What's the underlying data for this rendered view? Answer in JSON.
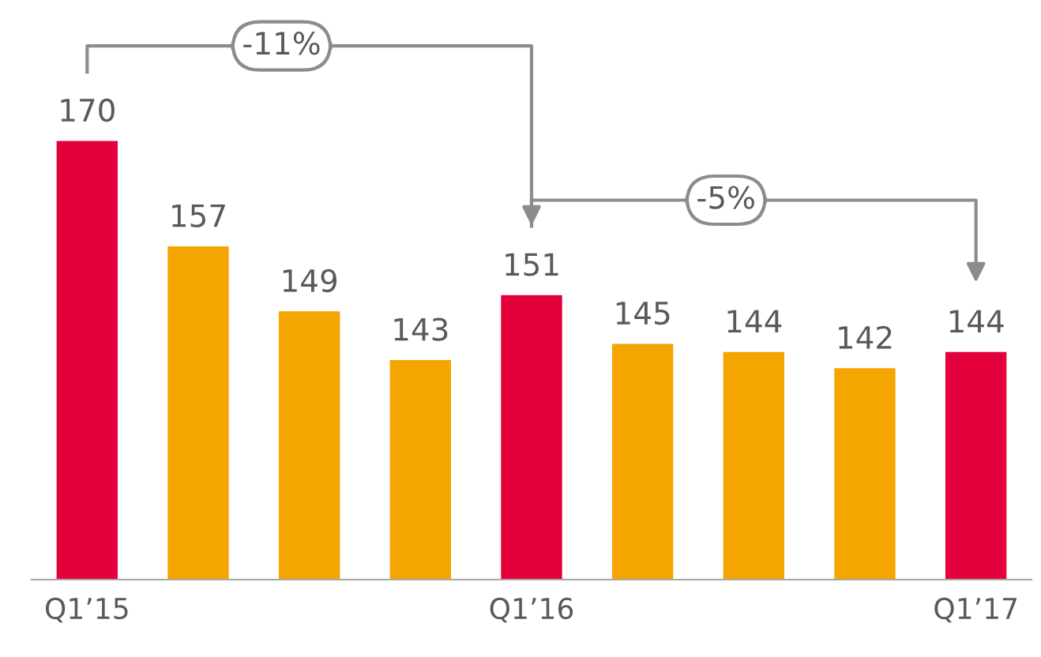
{
  "chart_data": {
    "type": "bar",
    "categories": [
      "Q1’15",
      null,
      null,
      null,
      "Q1’16",
      null,
      null,
      null,
      "Q1’17"
    ],
    "values": [
      170,
      157,
      149,
      143,
      151,
      145,
      144,
      142,
      144
    ],
    "colors": [
      "#e4003a",
      "#f5a500",
      "#f5a500",
      "#f5a500",
      "#e4003a",
      "#f5a500",
      "#f5a500",
      "#f5a500",
      "#e4003a"
    ],
    "tick_labels": "x",
    "data_labels": true,
    "annotations": [
      "-11%",
      "-5%"
    ]
  }
}
